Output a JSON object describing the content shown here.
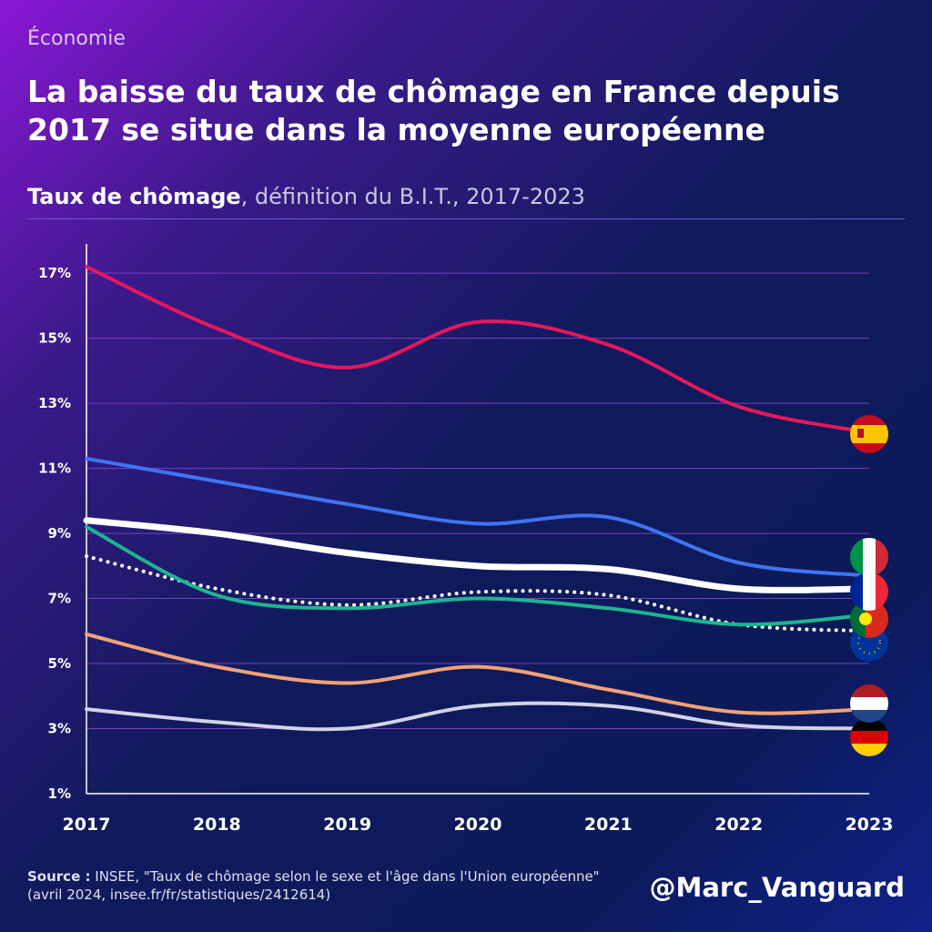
{
  "chart_data": {
    "type": "line",
    "kicker": "Économie",
    "title": "La baisse du taux de chômage en France depuis 2017 se situe dans la moyenne européenne",
    "subtitle_bold": "Taux de chômage",
    "subtitle_rest": ", définition du B.I.T., 2017-2023",
    "categories": [
      "2017",
      "2018",
      "2019",
      "2020",
      "2021",
      "2022",
      "2023"
    ],
    "series": [
      {
        "color": "#e8175d",
        "values": [
          17.2,
          15.3,
          14.1,
          15.5,
          14.8,
          12.9,
          12.1
        ]
      },
      {
        "color": "#3f74f2",
        "values": [
          11.3,
          10.6,
          9.9,
          9.3,
          9.5,
          8.1,
          7.7
        ]
      },
      {
        "color": "#ffffff",
        "width": 7,
        "values": [
          9.4,
          9.0,
          8.4,
          8.0,
          7.9,
          7.3,
          7.3
        ]
      },
      {
        "color": "#ffffff",
        "dotted": true,
        "values": [
          8.3,
          7.3,
          6.8,
          7.2,
          7.1,
          6.2,
          6.0
        ]
      },
      {
        "color": "#1db591",
        "values": [
          9.2,
          7.1,
          6.7,
          7.0,
          6.7,
          6.2,
          6.5
        ]
      },
      {
        "color": "#f2a277",
        "values": [
          5.9,
          4.9,
          4.4,
          4.9,
          4.2,
          3.5,
          3.6
        ]
      },
      {
        "color": "#d3d3e6",
        "values": [
          3.6,
          3.2,
          3.0,
          3.7,
          3.7,
          3.1,
          3.0
        ]
      }
    ],
    "ylim": [
      1,
      17.9
    ],
    "yticks": [
      {
        "value": 1,
        "label": "1%"
      },
      {
        "value": 3,
        "label": "3%"
      },
      {
        "value": 5,
        "label": "5%"
      },
      {
        "value": 7,
        "label": "7%"
      },
      {
        "value": 9,
        "label": "9%"
      },
      {
        "value": 11,
        "label": "11%"
      },
      {
        "value": 13,
        "label": "13%"
      },
      {
        "value": 15,
        "label": "15%"
      },
      {
        "value": 17,
        "label": "17%"
      }
    ],
    "grid": true,
    "source_bold": "Source :",
    "source_rest": "INSEE, \"Taux de chômage selon le sexe et l'âge dans l'Union européenne\" (avril 2024, insee.fr/fr/statistiques/2412614)",
    "handle": "@Marc_Vanguard"
  }
}
